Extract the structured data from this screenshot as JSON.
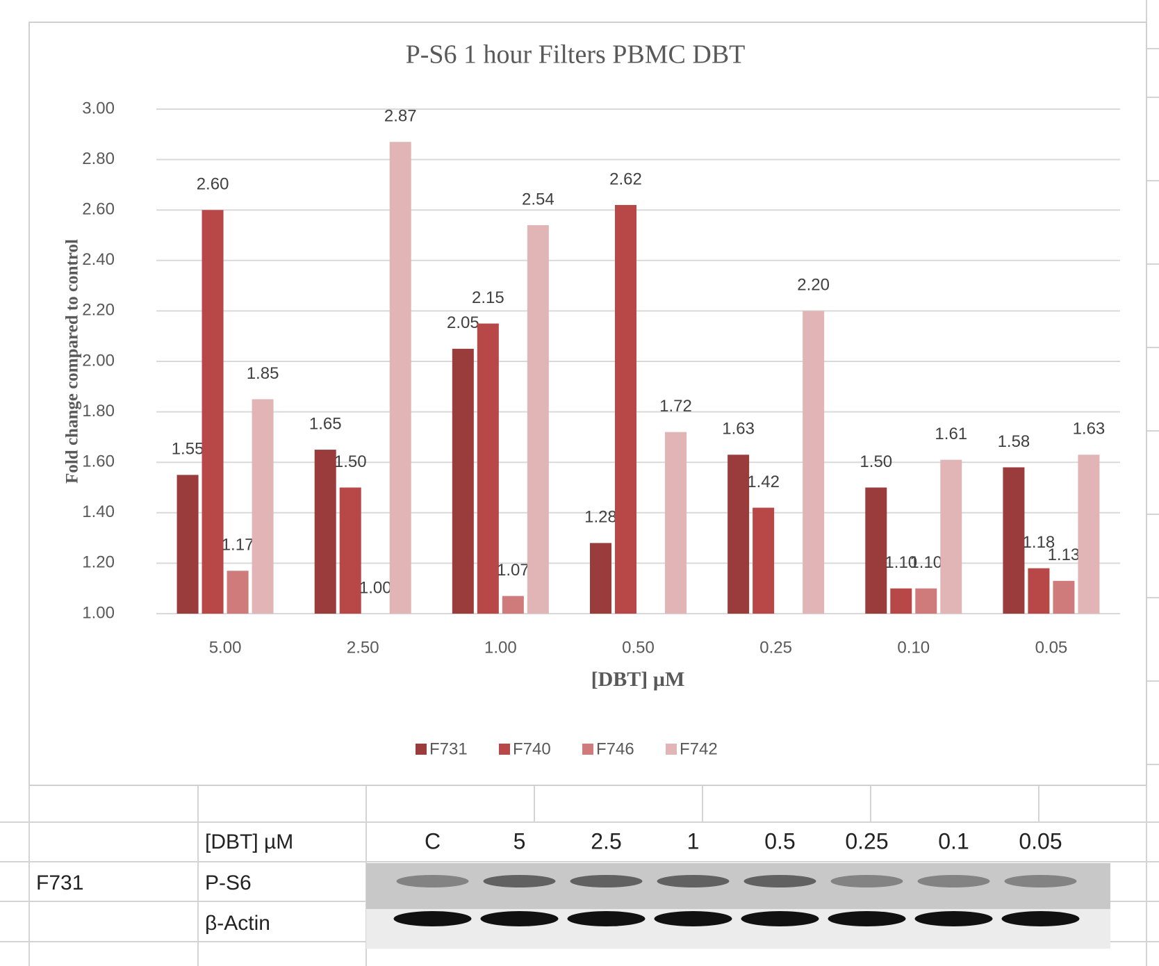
{
  "chart_data": {
    "type": "bar",
    "title": "P-S6 1 hour Filters PBMC DBT",
    "x_label": "[DBT] µM",
    "y_label": "Fold change compared to control",
    "categories": [
      "5.00",
      "2.50",
      "1.00",
      "0.50",
      "0.25",
      "0.10",
      "0.05"
    ],
    "series": [
      {
        "name": "F731",
        "color": "#9b3c3c",
        "values": [
          1.55,
          1.65,
          2.05,
          1.28,
          1.63,
          1.5,
          1.58
        ],
        "value_labels": [
          "1.55",
          "1.65",
          "2.05",
          "1.28",
          "1.63",
          "1.50",
          "1.58"
        ]
      },
      {
        "name": "F740",
        "color": "#b84848",
        "values": [
          2.6,
          1.5,
          2.15,
          2.62,
          1.42,
          1.1,
          1.18
        ],
        "value_labels": [
          "2.60",
          "1.50",
          "2.15",
          "2.62",
          "1.42",
          "1.10",
          "1.18"
        ]
      },
      {
        "name": "F746",
        "color": "#cf7b7b",
        "values": [
          1.17,
          1.0,
          1.07,
          null,
          null,
          1.1,
          1.13
        ],
        "value_labels": [
          "1.17",
          "1.00",
          "1.07",
          null,
          null,
          "1.10",
          "1.13"
        ]
      },
      {
        "name": "F742",
        "color": "#e1b5b5",
        "values": [
          1.85,
          2.87,
          2.54,
          1.72,
          2.2,
          1.61,
          1.63
        ],
        "value_labels": [
          "1.85",
          "2.87",
          "2.54",
          "1.72",
          "2.20",
          "1.61",
          "1.63"
        ]
      }
    ],
    "ylim": [
      1,
      3
    ],
    "yticks": [
      {
        "value": 1,
        "label": "1.00"
      },
      {
        "value": 1.2,
        "label": "1.20"
      },
      {
        "value": 1.4,
        "label": "1.40"
      },
      {
        "value": 1.6,
        "label": "1.60"
      },
      {
        "value": 1.8,
        "label": "1.80"
      },
      {
        "value": 2,
        "label": "2.00"
      },
      {
        "value": 2.2,
        "label": "2.20"
      },
      {
        "value": 2.4,
        "label": "2.40"
      },
      {
        "value": 2.6,
        "label": "2.60"
      },
      {
        "value": 2.8,
        "label": "2.80"
      },
      {
        "value": 3,
        "label": "3.00"
      }
    ],
    "grid": true,
    "legend": "bottom"
  },
  "blot": {
    "header_label": "[DBT] µM",
    "lanes": [
      "C",
      "5",
      "2.5",
      "1",
      "0.5",
      "0.25",
      "0.1",
      "0.05"
    ],
    "sample": "F731",
    "rows": [
      "P-S6",
      "β-Actin"
    ]
  }
}
